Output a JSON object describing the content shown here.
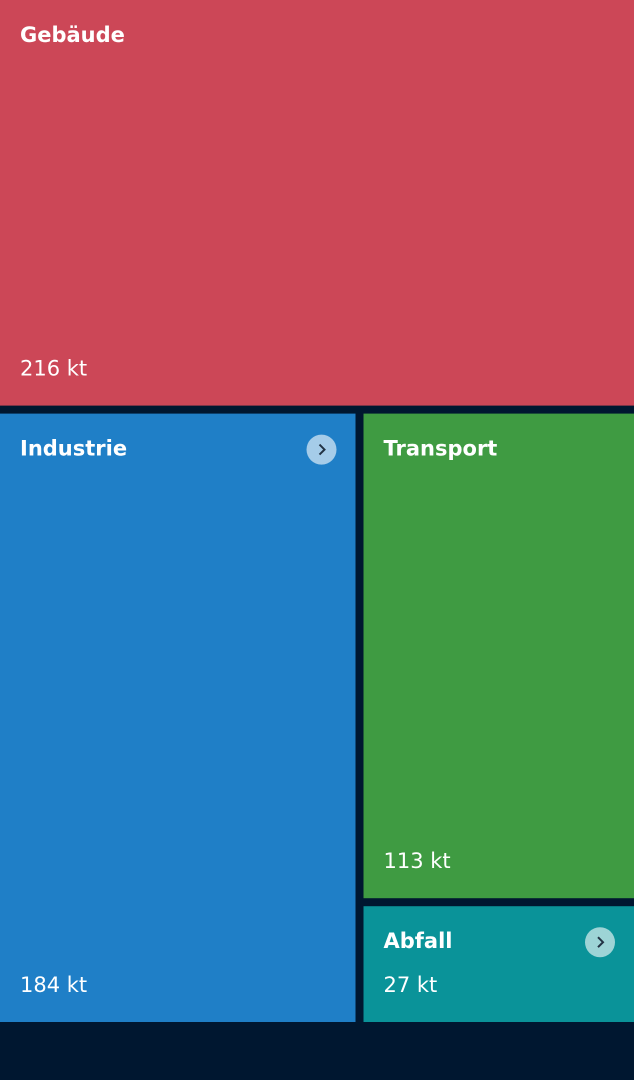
{
  "chart_data": {
    "type": "treemap",
    "categories": [
      "Gebäude",
      "Industrie",
      "Transport",
      "Abfall"
    ],
    "values": [
      216,
      184,
      113,
      27
    ],
    "value_labels": [
      "216 kt",
      "184 kt",
      "113 kt",
      "27 kt"
    ],
    "colors": [
      "#cc4757",
      "#1f7fc7",
      "#3f9b42",
      "#0a9399"
    ],
    "expandable": [
      false,
      true,
      false,
      true
    ]
  }
}
